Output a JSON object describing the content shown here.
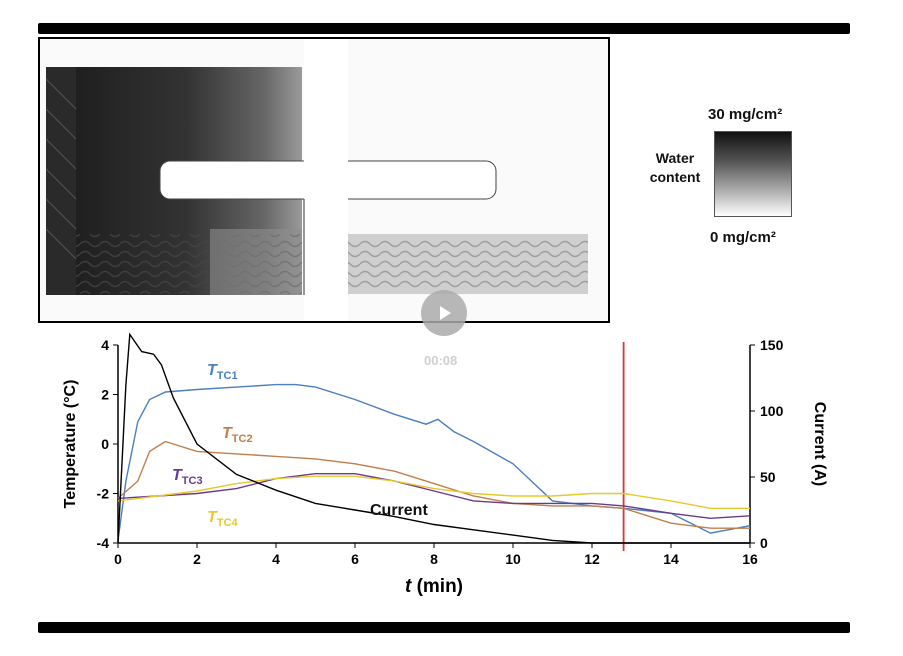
{
  "video": {
    "timestamp": "00:08",
    "play_icon": "play-icon"
  },
  "water_legend": {
    "label_line1": "Water",
    "label_line2": "content",
    "max_text": "30 mg/cm²",
    "min_text": "0 mg/cm²"
  },
  "chart_data": {
    "type": "line",
    "xlabel_var": "t",
    "xlabel_unit": " (min)",
    "ylabel_left": "Temperature (°C)",
    "ylabel_right": "Current (A)",
    "xlim": [
      0,
      16
    ],
    "ylim_left": [
      -4,
      4
    ],
    "ylim_right": [
      0,
      150
    ],
    "x_ticks": [
      "0",
      "2",
      "4",
      "6",
      "8",
      "10",
      "12",
      "14",
      "16"
    ],
    "y_ticks_left": [
      "4",
      "2",
      "0",
      "-2",
      "-4"
    ],
    "y_ticks_right": [
      "150",
      "100",
      "50",
      "0"
    ],
    "marker_x": 12.8,
    "series": [
      {
        "name": "T_TC1",
        "label_main": "T",
        "label_sub": "TC1",
        "color": "#4a7fc1",
        "axis": "left",
        "x": [
          0,
          0.2,
          0.5,
          0.8,
          1.2,
          2,
          3,
          4,
          4.5,
          5,
          6,
          7,
          7.8,
          8.1,
          8.5,
          9,
          10,
          11,
          12,
          12.8,
          14,
          15,
          16
        ],
        "y": [
          -3.9,
          -1.5,
          0.9,
          1.8,
          2.1,
          2.2,
          2.3,
          2.4,
          2.4,
          2.3,
          1.8,
          1.2,
          0.8,
          1.0,
          0.5,
          0.1,
          -0.8,
          -2.3,
          -2.5,
          -2.6,
          -2.8,
          -3.6,
          -3.3
        ]
      },
      {
        "name": "T_TC2",
        "label_main": "T",
        "label_sub": "TC2",
        "color": "#c17f4a",
        "axis": "left",
        "x": [
          0,
          0.5,
          0.8,
          1.2,
          1.6,
          2,
          3,
          4,
          5,
          6,
          7,
          8,
          9,
          10,
          11,
          12,
          12.8,
          14,
          15,
          16
        ],
        "y": [
          -2.2,
          -1.5,
          -0.3,
          0.1,
          -0.1,
          -0.3,
          -0.4,
          -0.5,
          -0.6,
          -0.8,
          -1.1,
          -1.6,
          -2.1,
          -2.4,
          -2.5,
          -2.5,
          -2.6,
          -3.2,
          -3.4,
          -3.4
        ]
      },
      {
        "name": "T_TC3",
        "label_main": "T",
        "label_sub": "TC3",
        "color": "#6a3a8c",
        "axis": "left",
        "x": [
          0,
          1,
          2,
          3,
          4,
          5,
          6,
          7,
          8,
          9,
          10,
          11,
          12,
          12.8,
          14,
          15,
          16
        ],
        "y": [
          -2.2,
          -2.1,
          -2.0,
          -1.8,
          -1.4,
          -1.2,
          -1.2,
          -1.5,
          -1.9,
          -2.3,
          -2.4,
          -2.4,
          -2.4,
          -2.5,
          -2.8,
          -3.0,
          -2.9
        ]
      },
      {
        "name": "T_TC4",
        "label_main": "T",
        "label_sub": "TC4",
        "color": "#e8c82a",
        "axis": "left",
        "x": [
          0,
          1,
          2,
          3,
          4,
          5,
          6,
          7,
          8,
          9,
          10,
          11,
          12,
          12.8,
          14,
          15,
          16
        ],
        "y": [
          -2.3,
          -2.1,
          -1.9,
          -1.6,
          -1.4,
          -1.3,
          -1.3,
          -1.5,
          -1.8,
          -2.0,
          -2.1,
          -2.1,
          -2.0,
          -2.0,
          -2.3,
          -2.6,
          -2.6
        ]
      },
      {
        "name": "Current",
        "label_main": "Current",
        "label_sub": "",
        "color": "#000000",
        "axis": "right",
        "x": [
          0,
          0.2,
          0.3,
          0.6,
          0.9,
          1.1,
          1.4,
          2,
          3,
          4,
          5,
          6,
          7,
          8,
          9,
          10,
          11,
          12,
          13,
          16
        ],
        "y": [
          0,
          120,
          158,
          145,
          143,
          135,
          110,
          75,
          52,
          40,
          30,
          25,
          20,
          14,
          10,
          6,
          2,
          0,
          0,
          0
        ]
      }
    ]
  }
}
